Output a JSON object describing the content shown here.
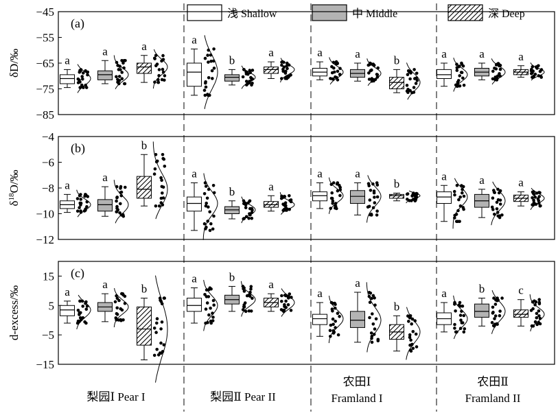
{
  "legend": [
    {
      "label": "浅 Shallow",
      "fill": "#ffffff",
      "pattern": "none"
    },
    {
      "label": "中 Middle",
      "fill": "#b3b3b3",
      "pattern": "none"
    },
    {
      "label": "深 Deep",
      "fill": "#ffffff",
      "pattern": "hatch"
    }
  ],
  "groups": [
    {
      "line1": "梨园Ⅰ Pear I",
      "line2": ""
    },
    {
      "line1": "梨园Ⅱ Pear II",
      "line2": ""
    },
    {
      "line1": "农田Ⅰ",
      "line2": "Framland I"
    },
    {
      "line1": "农田Ⅱ",
      "line2": "Framland II"
    }
  ],
  "chart_data": [
    {
      "type": "box",
      "panel": "(a)",
      "ylabel": "δD/‰",
      "ylim": [
        -85,
        -45
      ],
      "yticks": [
        -45,
        -55,
        -65,
        -75,
        -85
      ],
      "series": [
        {
          "group": "Pear I",
          "depth": "Shallow",
          "letter": "a",
          "min": -74.5,
          "q1": -73,
          "median": -71,
          "q3": -69.5,
          "max": -67.5
        },
        {
          "group": "Pear I",
          "depth": "Middle",
          "letter": "a",
          "min": -73,
          "q1": -71.5,
          "median": -69.5,
          "q3": -68,
          "max": -64
        },
        {
          "group": "Pear I",
          "depth": "Deep",
          "letter": "a",
          "min": -72.5,
          "q1": -69,
          "median": -66.5,
          "q3": -65,
          "max": -62
        },
        {
          "group": "Pear II",
          "depth": "Shallow",
          "letter": "a",
          "min": -77.5,
          "q1": -74,
          "median": -68.5,
          "q3": -65,
          "max": -59.5
        },
        {
          "group": "Pear II",
          "depth": "Middle",
          "letter": "b",
          "min": -73.5,
          "q1": -72,
          "median": -70.5,
          "q3": -69.5,
          "max": -67.5
        },
        {
          "group": "Pear II",
          "depth": "Deep",
          "letter": "a",
          "min": -71,
          "q1": -69,
          "median": -67.5,
          "q3": -66.5,
          "max": -64.5
        },
        {
          "group": "Framland I",
          "depth": "Shallow",
          "letter": "a",
          "min": -71.5,
          "q1": -70,
          "median": -68.5,
          "q3": -67,
          "max": -64.5
        },
        {
          "group": "Framland I",
          "depth": "Middle",
          "letter": "a",
          "min": -72,
          "q1": -70.5,
          "median": -69,
          "q3": -67.5,
          "max": -65
        },
        {
          "group": "Framland I",
          "depth": "Deep",
          "letter": "b",
          "min": -76.5,
          "q1": -75,
          "median": -72.5,
          "q3": -70.5,
          "max": -67.5
        },
        {
          "group": "Framland II",
          "depth": "Shallow",
          "letter": "a",
          "min": -74,
          "q1": -71,
          "median": -69.5,
          "q3": -67.5,
          "max": -65
        },
        {
          "group": "Framland II",
          "depth": "Middle",
          "letter": "a",
          "min": -71.5,
          "q1": -70,
          "median": -68.5,
          "q3": -67,
          "max": -65
        },
        {
          "group": "Framland II",
          "depth": "Deep",
          "letter": "a",
          "min": -70.5,
          "q1": -69.5,
          "median": -68.5,
          "q3": -67.5,
          "max": -66
        }
      ]
    },
    {
      "type": "box",
      "panel": "(b)",
      "ylabel": "δ18O/‰",
      "ylim": [
        -12,
        -4
      ],
      "yticks": [
        -4,
        -6,
        -8,
        -10,
        -12
      ],
      "series": [
        {
          "group": "Pear I",
          "depth": "Shallow",
          "letter": "a",
          "min": -9.9,
          "q1": -9.6,
          "median": -9.3,
          "q3": -9.0,
          "max": -8.5
        },
        {
          "group": "Pear I",
          "depth": "Middle",
          "letter": "a",
          "min": -10.2,
          "q1": -9.8,
          "median": -9.3,
          "q3": -8.9,
          "max": -7.9
        },
        {
          "group": "Pear I",
          "depth": "Deep",
          "letter": "b",
          "min": -9.4,
          "q1": -8.8,
          "median": -8.1,
          "q3": -7.1,
          "max": -5.4
        },
        {
          "group": "Pear II",
          "depth": "Shallow",
          "letter": "a",
          "min": -11.3,
          "q1": -9.8,
          "median": -9.2,
          "q3": -8.7,
          "max": -7.6
        },
        {
          "group": "Pear II",
          "depth": "Middle",
          "letter": "b",
          "min": -10.4,
          "q1": -10.0,
          "median": -9.7,
          "q3": -9.45,
          "max": -9.0
        },
        {
          "group": "Pear II",
          "depth": "Deep",
          "letter": "a",
          "min": -9.8,
          "q1": -9.5,
          "median": -9.3,
          "q3": -9.05,
          "max": -8.6
        },
        {
          "group": "Framland I",
          "depth": "Shallow",
          "letter": "a",
          "min": -9.6,
          "q1": -9.0,
          "median": -8.6,
          "q3": -8.3,
          "max": -7.6
        },
        {
          "group": "Framland I",
          "depth": "Middle",
          "letter": "a",
          "min": -10.1,
          "q1": -9.2,
          "median": -8.65,
          "q3": -8.2,
          "max": -7.6
        },
        {
          "group": "Framland I",
          "depth": "Deep",
          "letter": "b",
          "min": -9.0,
          "q1": -8.8,
          "median": -8.6,
          "q3": -8.5,
          "max": -8.4
        },
        {
          "group": "Framland II",
          "depth": "Shallow",
          "letter": "a",
          "min": -10.6,
          "q1": -9.2,
          "median": -8.7,
          "q3": -8.3,
          "max": -7.8
        },
        {
          "group": "Framland II",
          "depth": "Middle",
          "letter": "a",
          "min": -10.3,
          "q1": -9.5,
          "median": -9.0,
          "q3": -8.5,
          "max": -8.1
        },
        {
          "group": "Framland II",
          "depth": "Deep",
          "letter": "a",
          "min": -9.4,
          "q1": -9.05,
          "median": -8.8,
          "q3": -8.55,
          "max": -8.3
        }
      ]
    },
    {
      "type": "box",
      "panel": "(c)",
      "ylabel": "d-excess/‰",
      "ylim": [
        -15,
        20
      ],
      "yticks": [
        15,
        5,
        -5,
        -15
      ],
      "series": [
        {
          "group": "Pear I",
          "depth": "Shallow",
          "letter": "a",
          "min": -1,
          "q1": 1.5,
          "median": 3.5,
          "q3": 5,
          "max": 6.5
        },
        {
          "group": "Pear I",
          "depth": "Middle",
          "letter": "a",
          "min": -0.5,
          "q1": 3,
          "median": 4.5,
          "q3": 6,
          "max": 9
        },
        {
          "group": "Pear I",
          "depth": "Deep",
          "letter": "b",
          "min": -13.5,
          "q1": -8.5,
          "median": -3,
          "q3": 4.5,
          "max": 7.5
        },
        {
          "group": "Pear II",
          "depth": "Shallow",
          "letter": "a",
          "min": -1,
          "q1": 3,
          "median": 5,
          "q3": 7.5,
          "max": 11
        },
        {
          "group": "Pear II",
          "depth": "Middle",
          "letter": "b",
          "min": 3,
          "q1": 5.5,
          "median": 7,
          "q3": 8.5,
          "max": 11.5
        },
        {
          "group": "Pear II",
          "depth": "Deep",
          "letter": "a",
          "min": 3,
          "q1": 4.5,
          "median": 6,
          "q3": 7.5,
          "max": 9
        },
        {
          "group": "Framland I",
          "depth": "Shallow",
          "letter": "a",
          "min": -5.5,
          "q1": -1.5,
          "median": 0.5,
          "q3": 2,
          "max": 6
        },
        {
          "group": "Framland I",
          "depth": "Middle",
          "letter": "a",
          "min": -7.5,
          "q1": -2.5,
          "median": 0,
          "q3": 3,
          "max": 9.5
        },
        {
          "group": "Framland I",
          "depth": "Deep",
          "letter": "b",
          "min": -10.5,
          "q1": -6.5,
          "median": -4,
          "q3": -1.5,
          "max": 1.5
        },
        {
          "group": "Framland II",
          "depth": "Shallow",
          "letter": "a",
          "min": -4,
          "q1": -1.5,
          "median": 0.5,
          "q3": 2.5,
          "max": 6
        },
        {
          "group": "Framland II",
          "depth": "Middle",
          "letter": "b",
          "min": -2,
          "q1": 1,
          "median": 3,
          "q3": 5.5,
          "max": 7.5
        },
        {
          "group": "Framland II",
          "depth": "Deep",
          "letter": "c",
          "min": -2,
          "q1": 1,
          "median": 2,
          "q3": 3.5,
          "max": 7
        }
      ]
    }
  ]
}
